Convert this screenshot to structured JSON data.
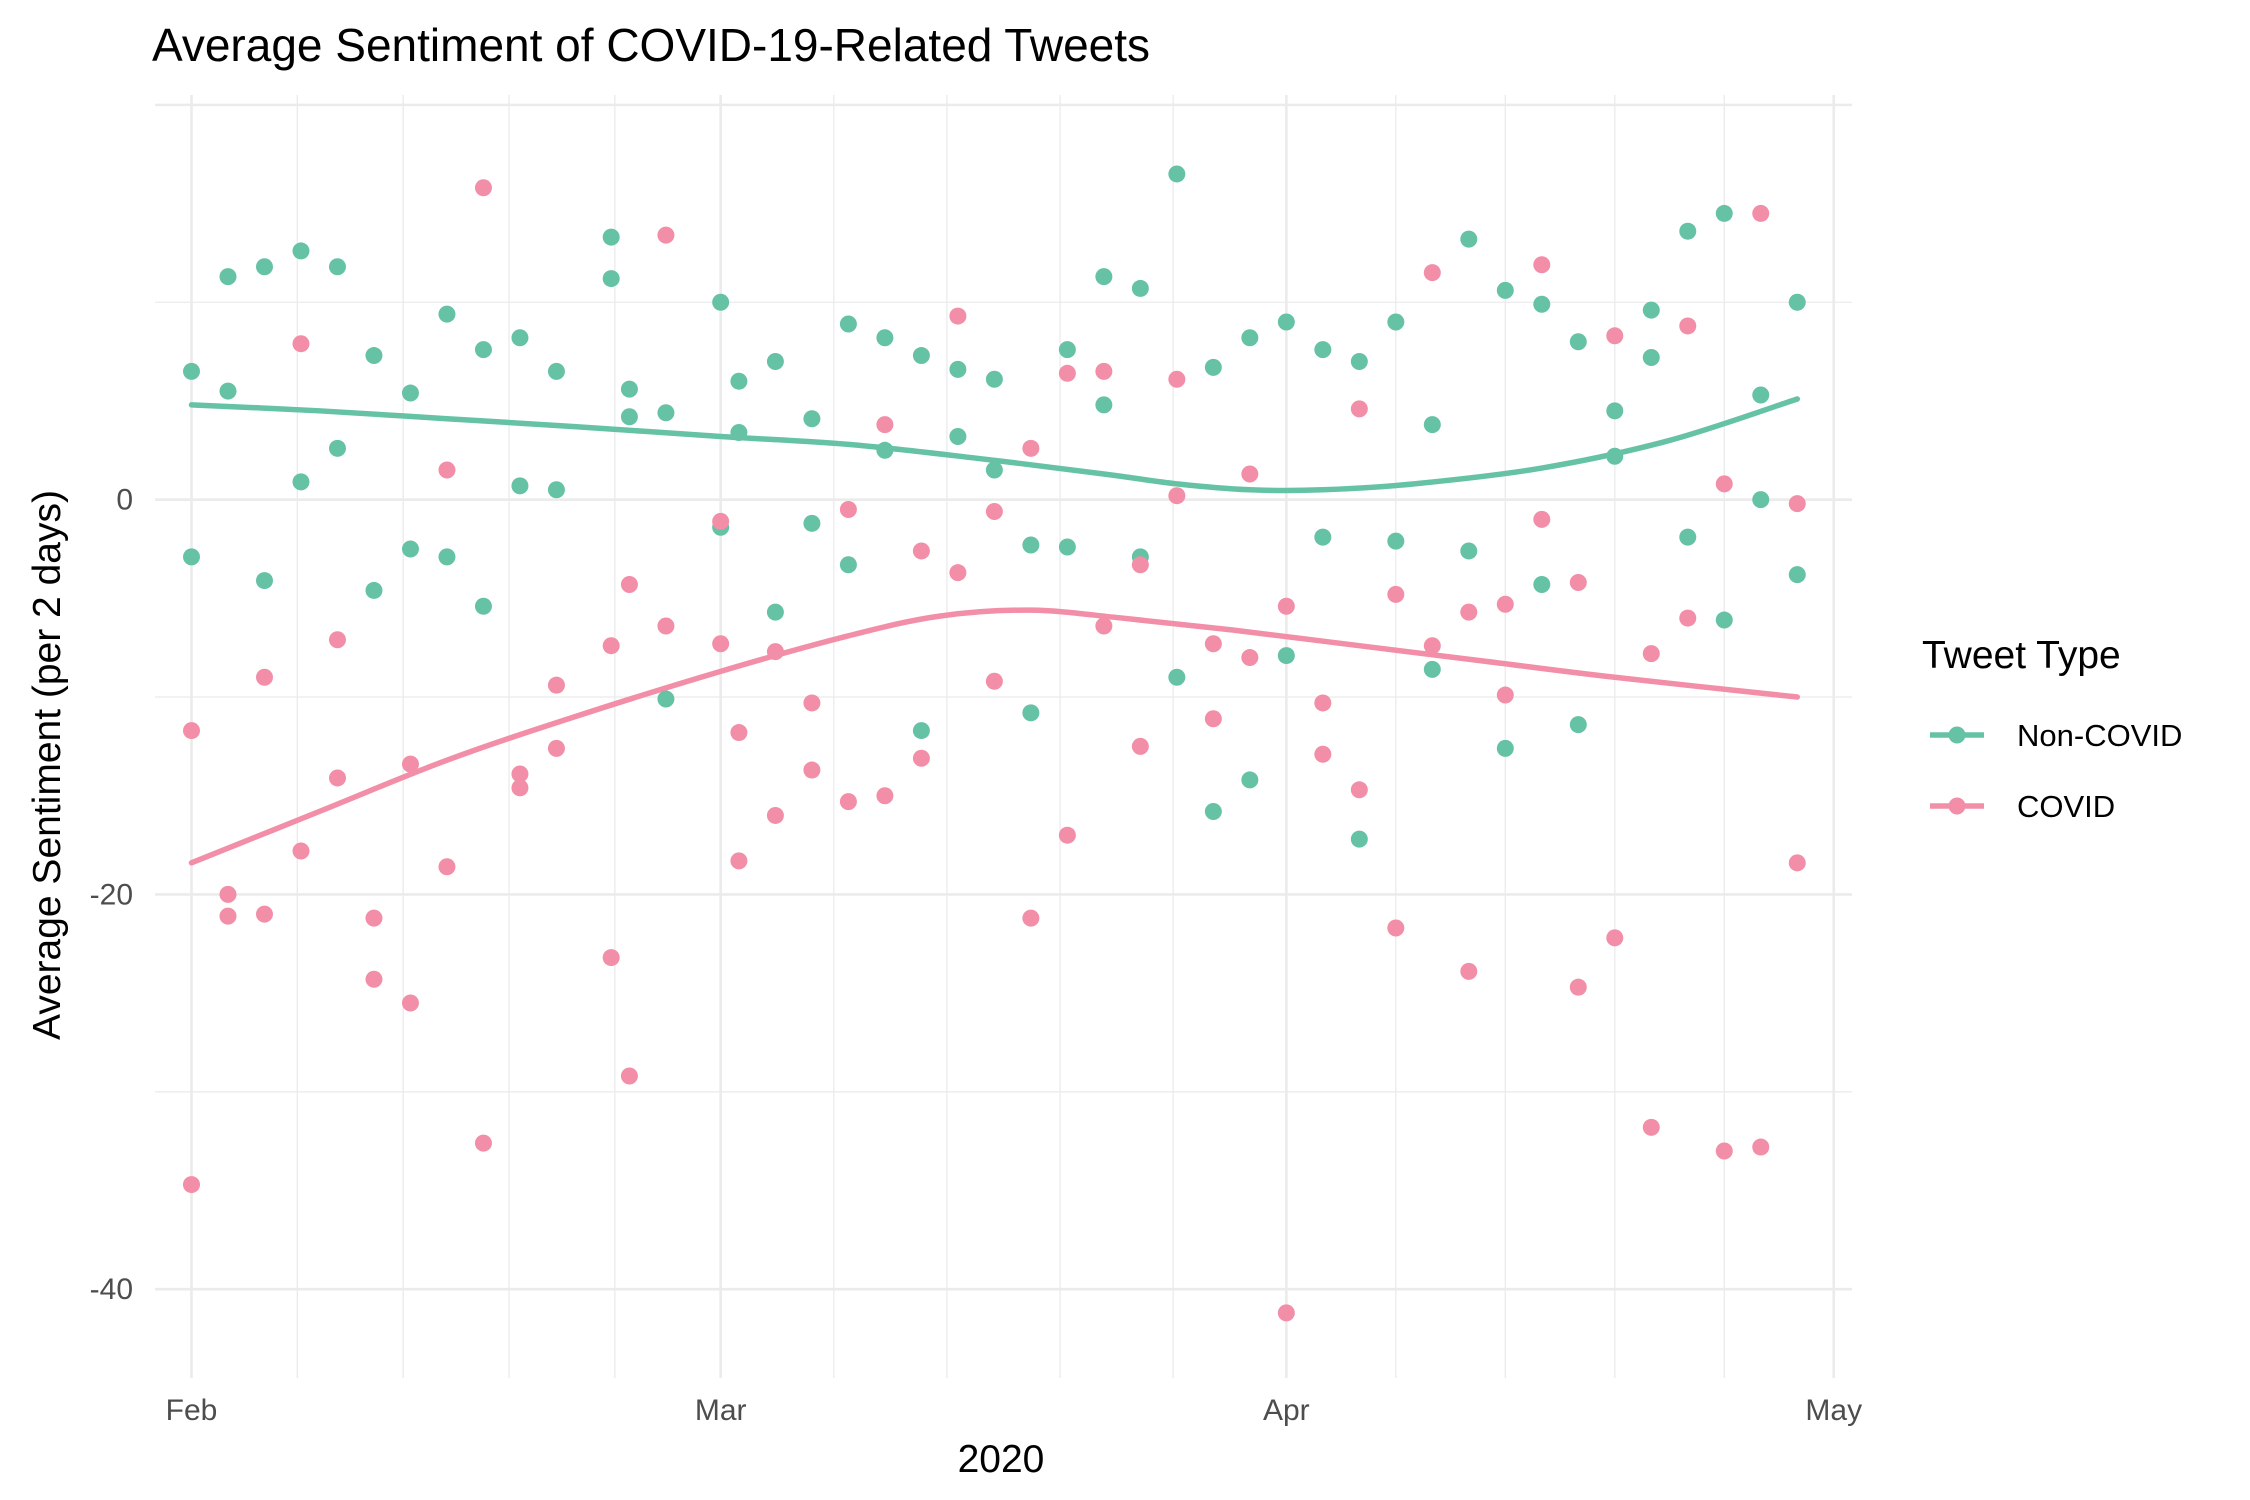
{
  "chart_data": {
    "type": "scatter",
    "title": "Average Sentiment of COVID-19-Related Tweets",
    "xlabel": "2020",
    "ylabel": "Average Sentiment (per 2 days)",
    "x_range": [
      "2020-01-30",
      "2020-05-02"
    ],
    "ylim": [
      -44.5,
      20.5
    ],
    "y_ticks": [
      0,
      -20,
      -40
    ],
    "x_ticks": [
      {
        "date": "2020-02-01",
        "label": "Feb"
      },
      {
        "date": "2020-03-01",
        "label": "Mar"
      },
      {
        "date": "2020-04-01",
        "label": "Apr"
      },
      {
        "date": "2020-05-01",
        "label": "May"
      }
    ],
    "grid": true,
    "legend": {
      "title": "Tweet Type",
      "position": "right"
    },
    "series": [
      {
        "name": "Non-COVID",
        "color": "#66C2A5",
        "points": [
          [
            "2020-02-01",
            6.5
          ],
          [
            "2020-02-01",
            -2.9
          ],
          [
            "2020-02-03",
            5.5
          ],
          [
            "2020-02-03",
            11.3
          ],
          [
            "2020-02-05",
            11.8
          ],
          [
            "2020-02-05",
            -4.1
          ],
          [
            "2020-02-07",
            12.6
          ],
          [
            "2020-02-07",
            0.9
          ],
          [
            "2020-02-09",
            11.8
          ],
          [
            "2020-02-09",
            2.6
          ],
          [
            "2020-02-11",
            7.3
          ],
          [
            "2020-02-11",
            -4.6
          ],
          [
            "2020-02-13",
            5.4
          ],
          [
            "2020-02-13",
            -2.5
          ],
          [
            "2020-02-15",
            9.4
          ],
          [
            "2020-02-15",
            -2.9
          ],
          [
            "2020-02-17",
            7.6
          ],
          [
            "2020-02-17",
            -5.4
          ],
          [
            "2020-02-19",
            8.2
          ],
          [
            "2020-02-19",
            0.7
          ],
          [
            "2020-02-21",
            6.5
          ],
          [
            "2020-02-21",
            0.5
          ],
          [
            "2020-02-24",
            13.3
          ],
          [
            "2020-02-24",
            11.2
          ],
          [
            "2020-02-25",
            5.6
          ],
          [
            "2020-02-25",
            4.2
          ],
          [
            "2020-02-27",
            4.4
          ],
          [
            "2020-02-27",
            -10.1
          ],
          [
            "2020-03-01",
            10.0
          ],
          [
            "2020-03-01",
            -1.4
          ],
          [
            "2020-03-02",
            6.0
          ],
          [
            "2020-03-02",
            3.4
          ],
          [
            "2020-03-04",
            7.0
          ],
          [
            "2020-03-04",
            -5.7
          ],
          [
            "2020-03-06",
            4.1
          ],
          [
            "2020-03-06",
            -1.2
          ],
          [
            "2020-03-08",
            8.9
          ],
          [
            "2020-03-08",
            -3.3
          ],
          [
            "2020-03-10",
            8.2
          ],
          [
            "2020-03-10",
            2.5
          ],
          [
            "2020-03-12",
            7.3
          ],
          [
            "2020-03-12",
            -11.7
          ],
          [
            "2020-03-14",
            6.6
          ],
          [
            "2020-03-14",
            3.2
          ],
          [
            "2020-03-16",
            6.1
          ],
          [
            "2020-03-16",
            1.5
          ],
          [
            "2020-03-18",
            -2.3
          ],
          [
            "2020-03-18",
            -10.8
          ],
          [
            "2020-03-20",
            7.6
          ],
          [
            "2020-03-20",
            -2.4
          ],
          [
            "2020-03-22",
            11.3
          ],
          [
            "2020-03-22",
            4.8
          ],
          [
            "2020-03-24",
            10.7
          ],
          [
            "2020-03-24",
            -2.9
          ],
          [
            "2020-03-26",
            16.5
          ],
          [
            "2020-03-26",
            -9.0
          ],
          [
            "2020-03-28",
            6.7
          ],
          [
            "2020-03-28",
            -15.8
          ],
          [
            "2020-03-30",
            8.2
          ],
          [
            "2020-03-30",
            -14.2
          ],
          [
            "2020-04-01",
            9.0
          ],
          [
            "2020-04-01",
            -7.9
          ],
          [
            "2020-04-03",
            7.6
          ],
          [
            "2020-04-03",
            -1.9
          ],
          [
            "2020-04-05",
            7.0
          ],
          [
            "2020-04-05",
            -17.2
          ],
          [
            "2020-04-07",
            9.0
          ],
          [
            "2020-04-07",
            -2.1
          ],
          [
            "2020-04-09",
            3.8
          ],
          [
            "2020-04-09",
            -8.6
          ],
          [
            "2020-04-11",
            13.2
          ],
          [
            "2020-04-11",
            -2.6
          ],
          [
            "2020-04-13",
            10.6
          ],
          [
            "2020-04-13",
            -12.6
          ],
          [
            "2020-04-15",
            9.9
          ],
          [
            "2020-04-15",
            -4.3
          ],
          [
            "2020-04-17",
            8.0
          ],
          [
            "2020-04-17",
            -11.4
          ],
          [
            "2020-04-19",
            4.5
          ],
          [
            "2020-04-19",
            2.2
          ],
          [
            "2020-04-21",
            9.6
          ],
          [
            "2020-04-21",
            7.2
          ],
          [
            "2020-04-23",
            13.6
          ],
          [
            "2020-04-23",
            -1.9
          ],
          [
            "2020-04-25",
            14.5
          ],
          [
            "2020-04-25",
            -6.1
          ],
          [
            "2020-04-27",
            5.3
          ],
          [
            "2020-04-27",
            0.0
          ],
          [
            "2020-04-29",
            10.0
          ],
          [
            "2020-04-29",
            -3.8
          ]
        ],
        "trend": [
          [
            "2020-02-01",
            4.8
          ],
          [
            "2020-02-08",
            4.5
          ],
          [
            "2020-02-15",
            4.1
          ],
          [
            "2020-02-22",
            3.7
          ],
          [
            "2020-03-01",
            3.2
          ],
          [
            "2020-03-08",
            2.8
          ],
          [
            "2020-03-15",
            2.1
          ],
          [
            "2020-03-22",
            1.3
          ],
          [
            "2020-03-26",
            0.8
          ],
          [
            "2020-03-30",
            0.5
          ],
          [
            "2020-04-03",
            0.5
          ],
          [
            "2020-04-08",
            0.8
          ],
          [
            "2020-04-15",
            1.6
          ],
          [
            "2020-04-22",
            3.0
          ],
          [
            "2020-04-29",
            5.1
          ]
        ]
      },
      {
        "name": "COVID",
        "color": "#F28EA7",
        "points": [
          [
            "2020-02-01",
            -11.7
          ],
          [
            "2020-02-01",
            -34.7
          ],
          [
            "2020-02-03",
            -20.0
          ],
          [
            "2020-02-03",
            -21.1
          ],
          [
            "2020-02-05",
            -21.0
          ],
          [
            "2020-02-05",
            -9.0
          ],
          [
            "2020-02-07",
            7.9
          ],
          [
            "2020-02-07",
            -17.8
          ],
          [
            "2020-02-09",
            -7.1
          ],
          [
            "2020-02-09",
            -14.1
          ],
          [
            "2020-02-11",
            -21.2
          ],
          [
            "2020-02-11",
            -24.3
          ],
          [
            "2020-02-13",
            -25.5
          ],
          [
            "2020-02-13",
            -13.4
          ],
          [
            "2020-02-15",
            1.5
          ],
          [
            "2020-02-15",
            -18.6
          ],
          [
            "2020-02-17",
            15.8
          ],
          [
            "2020-02-17",
            -32.6
          ],
          [
            "2020-02-19",
            -13.9
          ],
          [
            "2020-02-19",
            -14.6
          ],
          [
            "2020-02-21",
            -9.4
          ],
          [
            "2020-02-21",
            -12.6
          ],
          [
            "2020-02-24",
            -7.4
          ],
          [
            "2020-02-24",
            -23.2
          ],
          [
            "2020-02-25",
            -4.3
          ],
          [
            "2020-02-25",
            -29.2
          ],
          [
            "2020-02-27",
            13.4
          ],
          [
            "2020-02-27",
            -6.4
          ],
          [
            "2020-03-01",
            -1.1
          ],
          [
            "2020-03-01",
            -7.3
          ],
          [
            "2020-03-02",
            -11.8
          ],
          [
            "2020-03-02",
            -18.3
          ],
          [
            "2020-03-04",
            -7.7
          ],
          [
            "2020-03-04",
            -16.0
          ],
          [
            "2020-03-06",
            -10.3
          ],
          [
            "2020-03-06",
            -13.7
          ],
          [
            "2020-03-08",
            -0.5
          ],
          [
            "2020-03-08",
            -15.3
          ],
          [
            "2020-03-10",
            3.8
          ],
          [
            "2020-03-10",
            -15.0
          ],
          [
            "2020-03-12",
            -2.6
          ],
          [
            "2020-03-12",
            -13.1
          ],
          [
            "2020-03-14",
            9.3
          ],
          [
            "2020-03-14",
            -3.7
          ],
          [
            "2020-03-16",
            -0.6
          ],
          [
            "2020-03-16",
            -9.2
          ],
          [
            "2020-03-18",
            2.6
          ],
          [
            "2020-03-18",
            -21.2
          ],
          [
            "2020-03-20",
            6.4
          ],
          [
            "2020-03-20",
            -17.0
          ],
          [
            "2020-03-22",
            6.5
          ],
          [
            "2020-03-22",
            -6.4
          ],
          [
            "2020-03-24",
            -3.3
          ],
          [
            "2020-03-24",
            -12.5
          ],
          [
            "2020-03-26",
            6.1
          ],
          [
            "2020-03-26",
            0.2
          ],
          [
            "2020-03-28",
            -7.3
          ],
          [
            "2020-03-28",
            -11.1
          ],
          [
            "2020-03-30",
            1.3
          ],
          [
            "2020-03-30",
            -8.0
          ],
          [
            "2020-04-01",
            -5.4
          ],
          [
            "2020-04-01",
            -41.2
          ],
          [
            "2020-04-03",
            -10.3
          ],
          [
            "2020-04-03",
            -12.9
          ],
          [
            "2020-04-05",
            4.6
          ],
          [
            "2020-04-05",
            -14.7
          ],
          [
            "2020-04-07",
            -4.8
          ],
          [
            "2020-04-07",
            -21.7
          ],
          [
            "2020-04-09",
            11.5
          ],
          [
            "2020-04-09",
            -7.4
          ],
          [
            "2020-04-11",
            -5.7
          ],
          [
            "2020-04-11",
            -23.9
          ],
          [
            "2020-04-13",
            -5.3
          ],
          [
            "2020-04-13",
            -9.9
          ],
          [
            "2020-04-15",
            11.9
          ],
          [
            "2020-04-15",
            -1.0
          ],
          [
            "2020-04-17",
            -4.2
          ],
          [
            "2020-04-17",
            -24.7
          ],
          [
            "2020-04-19",
            8.3
          ],
          [
            "2020-04-19",
            -22.2
          ],
          [
            "2020-04-21",
            -7.8
          ],
          [
            "2020-04-21",
            -31.8
          ],
          [
            "2020-04-23",
            8.8
          ],
          [
            "2020-04-23",
            -6.0
          ],
          [
            "2020-04-25",
            0.8
          ],
          [
            "2020-04-25",
            -33.0
          ],
          [
            "2020-04-27",
            14.5
          ],
          [
            "2020-04-27",
            -32.8
          ],
          [
            "2020-04-29",
            -0.2
          ],
          [
            "2020-04-29",
            -18.4
          ]
        ],
        "trend": [
          [
            "2020-02-01",
            -18.4
          ],
          [
            "2020-02-08",
            -15.8
          ],
          [
            "2020-02-15",
            -13.2
          ],
          [
            "2020-02-22",
            -11.0
          ],
          [
            "2020-03-01",
            -8.7
          ],
          [
            "2020-03-08",
            -6.9
          ],
          [
            "2020-03-13",
            -5.9
          ],
          [
            "2020-03-18",
            -5.6
          ],
          [
            "2020-03-23",
            -6.0
          ],
          [
            "2020-03-29",
            -6.6
          ],
          [
            "2020-04-05",
            -7.4
          ],
          [
            "2020-04-12",
            -8.2
          ],
          [
            "2020-04-19",
            -9.0
          ],
          [
            "2020-04-29",
            -10.0
          ]
        ]
      }
    ]
  }
}
